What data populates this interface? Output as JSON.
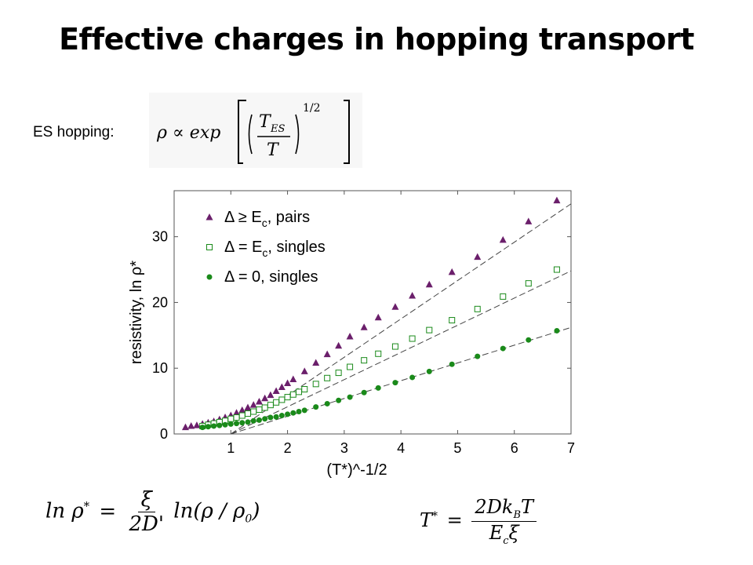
{
  "slide": {
    "title": "Effective charges in hopping transport",
    "es_label": "ES hopping:"
  },
  "formulas": {
    "es_rho": "ρ ∝ exp",
    "es_frac_num": "T",
    "es_frac_num_sub": "ES",
    "es_frac_den": "T",
    "es_power": "1/2",
    "ln_lhs": "ln ρ",
    "ln_lhs_sup": "*",
    "ln_eq": "=",
    "ln_frac_num": "ξ",
    "ln_frac_den": "2D'",
    "ln_rhs": "ln(ρ / ρ",
    "ln_rhs_sub": "0",
    "ln_rhs_close": ")",
    "t_lhs": "T",
    "t_lhs_sup": "*",
    "t_eq": "=",
    "t_frac_num": "2Dk",
    "t_frac_num_sub": "B",
    "t_frac_num_tail": "T",
    "t_frac_den": "E",
    "t_frac_den_sub": "c",
    "t_frac_den_tail": "ξ"
  },
  "chart_data": {
    "type": "scatter",
    "xlabel": "(T*)^-1/2",
    "ylabel": "resistivity, ln ρ*",
    "xlim": [
      0,
      7
    ],
    "ylim": [
      0,
      37
    ],
    "xticks": [
      1,
      2,
      3,
      4,
      5,
      6,
      7
    ],
    "yticks": [
      0,
      10,
      20,
      30
    ],
    "grid": false,
    "legend_position": "top-left",
    "series": [
      {
        "name": "Δ ≥ E_c, pairs",
        "marker": "triangle",
        "color": "#6b1f6b",
        "x": [
          0.2,
          0.3,
          0.4,
          0.5,
          0.6,
          0.7,
          0.8,
          0.9,
          1.0,
          1.1,
          1.2,
          1.3,
          1.4,
          1.5,
          1.6,
          1.7,
          1.8,
          1.9,
          2.0,
          2.1,
          2.3,
          2.5,
          2.7,
          2.9,
          3.1,
          3.35,
          3.6,
          3.9,
          4.2,
          4.5,
          4.9,
          5.35,
          5.8,
          6.25,
          6.75
        ],
        "y": [
          1.0,
          1.2,
          1.3,
          1.5,
          1.7,
          1.9,
          2.2,
          2.5,
          2.8,
          3.2,
          3.6,
          4.0,
          4.4,
          4.9,
          5.4,
          5.9,
          6.5,
          7.1,
          7.7,
          8.3,
          9.5,
          10.8,
          12.1,
          13.4,
          14.8,
          16.2,
          17.7,
          19.3,
          21.0,
          22.7,
          24.6,
          26.9,
          29.5,
          32.3,
          35.5
        ]
      },
      {
        "name": "Δ = E_c, singles",
        "marker": "square-open",
        "color": "#1a8a1a",
        "x": [
          0.5,
          0.6,
          0.7,
          0.8,
          0.9,
          1.0,
          1.1,
          1.2,
          1.3,
          1.4,
          1.5,
          1.6,
          1.7,
          1.8,
          1.9,
          2.0,
          2.1,
          2.2,
          2.3,
          2.5,
          2.7,
          2.9,
          3.1,
          3.35,
          3.6,
          3.9,
          4.2,
          4.5,
          4.9,
          5.35,
          5.8,
          6.25,
          6.75
        ],
        "y": [
          1.2,
          1.4,
          1.6,
          1.8,
          2.0,
          2.3,
          2.5,
          2.8,
          3.1,
          3.4,
          3.7,
          4.0,
          4.4,
          4.8,
          5.2,
          5.6,
          6.0,
          6.4,
          6.8,
          7.6,
          8.5,
          9.3,
          10.2,
          11.2,
          12.2,
          13.3,
          14.5,
          15.8,
          17.3,
          19.0,
          20.9,
          22.9,
          25.0
        ]
      },
      {
        "name": "Δ = 0, singles",
        "marker": "circle",
        "color": "#1a8a1a",
        "x": [
          0.5,
          0.6,
          0.7,
          0.8,
          0.9,
          1.0,
          1.1,
          1.2,
          1.3,
          1.4,
          1.5,
          1.6,
          1.7,
          1.8,
          1.9,
          2.0,
          2.1,
          2.2,
          2.3,
          2.5,
          2.7,
          2.9,
          3.1,
          3.35,
          3.6,
          3.9,
          4.2,
          4.5,
          4.9,
          5.35,
          5.8,
          6.25,
          6.75
        ],
        "y": [
          1.0,
          1.1,
          1.2,
          1.3,
          1.4,
          1.5,
          1.6,
          1.7,
          1.8,
          2.0,
          2.1,
          2.3,
          2.5,
          2.6,
          2.8,
          3.0,
          3.2,
          3.4,
          3.6,
          4.1,
          4.6,
          5.1,
          5.6,
          6.3,
          7.0,
          7.8,
          8.6,
          9.5,
          10.6,
          11.8,
          13.0,
          14.3,
          15.7
        ]
      }
    ],
    "fit_lines": [
      {
        "series": "Δ ≥ E_c, pairs",
        "x": [
          1.0,
          7.0
        ],
        "y": [
          0.0,
          35.0
        ]
      },
      {
        "series": "Δ = E_c, singles",
        "x": [
          1.0,
          7.0
        ],
        "y": [
          0.0,
          24.8
        ]
      },
      {
        "series": "Δ = 0, singles",
        "x": [
          1.0,
          7.0
        ],
        "y": [
          0.0,
          16.2
        ]
      }
    ]
  }
}
